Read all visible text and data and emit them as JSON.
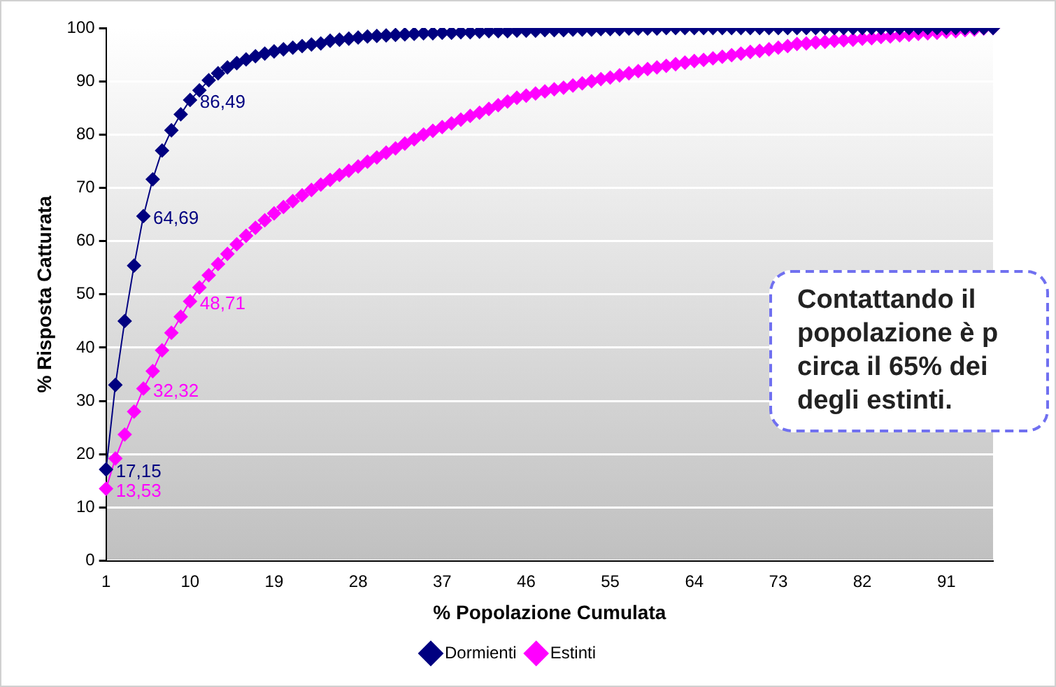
{
  "chart_data": {
    "type": "line",
    "xlabel": "% Popolazione Cumulata",
    "ylabel": "% Risposta Catturata",
    "categories": [
      "1",
      null,
      null,
      null,
      null,
      null,
      null,
      null,
      null,
      "10",
      null,
      null,
      null,
      null,
      null,
      null,
      null,
      null,
      "19",
      null,
      null,
      null,
      null,
      null,
      null,
      null,
      null,
      "28",
      null,
      null,
      null,
      null,
      null,
      null,
      null,
      null,
      "37",
      null,
      null,
      null,
      null,
      null,
      null,
      null,
      null,
      "46",
      null,
      null,
      null,
      null,
      null,
      null,
      null,
      null,
      "55",
      null,
      null,
      null,
      null,
      null,
      null,
      null,
      null,
      "64",
      null,
      null,
      null,
      null,
      null,
      null,
      null,
      null,
      "73",
      null,
      null,
      null,
      null,
      null,
      null,
      null,
      null,
      "82",
      null,
      null,
      null,
      null,
      null,
      null,
      null,
      null,
      "91",
      null,
      null,
      null,
      null,
      null
    ],
    "series": [
      {
        "name": "Dormienti",
        "color": "#000080",
        "values": [
          17.15,
          33,
          45,
          55.4,
          64.69,
          71.6,
          77,
          80.8,
          83.8,
          86.49,
          88.3,
          90.2,
          91.5,
          92.6,
          93.4,
          94.1,
          94.7,
          95.2,
          95.6,
          96,
          96.3,
          96.6,
          96.9,
          97.1,
          97.6,
          97.8,
          98,
          98.2,
          98.4,
          98.5,
          98.6,
          98.7,
          98.8,
          98.9,
          99,
          99,
          99.1,
          99.1,
          99.2,
          99.2,
          99.3,
          99.4,
          99.4,
          99.4,
          99.5,
          99.5,
          99.5,
          99.6,
          99.6,
          99.6,
          99.7,
          99.7,
          99.7,
          99.8,
          99.8,
          99.8,
          99.9,
          99.9,
          99.9,
          99.9,
          100,
          100,
          100,
          100,
          100,
          100,
          100,
          100,
          100,
          100,
          100,
          100,
          100,
          100,
          100,
          100,
          100,
          100,
          100,
          100,
          100,
          100,
          100,
          100,
          100,
          100,
          100,
          100,
          100,
          100,
          100,
          100,
          100,
          100,
          100,
          100
        ],
        "value_labels": [
          "17,15",
          null,
          null,
          null,
          "64,69",
          null,
          null,
          null,
          null,
          "86,49",
          null,
          null,
          null,
          null,
          null,
          null,
          null,
          null,
          null,
          null,
          null,
          null,
          null,
          null,
          null,
          null,
          null,
          null,
          null,
          null,
          null,
          null,
          null,
          null,
          null,
          null,
          null,
          null,
          null,
          null,
          null,
          null,
          null,
          null,
          null,
          null,
          null,
          null,
          null,
          null,
          null,
          null,
          null,
          null,
          null,
          null,
          null,
          null,
          null,
          null,
          null,
          null,
          null,
          null,
          null,
          null,
          null,
          null,
          null,
          null,
          null,
          null,
          null,
          null,
          null,
          null,
          null,
          null,
          null,
          null,
          null,
          null,
          null,
          null,
          null,
          null,
          null,
          null,
          null,
          null,
          null,
          null,
          null,
          null,
          null,
          null
        ]
      },
      {
        "name": "Estinti",
        "color": "#ff00ff",
        "values": [
          13.53,
          19.2,
          23.7,
          28,
          32.32,
          35.6,
          39.5,
          42.8,
          45.8,
          48.71,
          51.3,
          53.6,
          55.7,
          57.6,
          59.4,
          61,
          62.5,
          63.9,
          65.2,
          66.4,
          67.5,
          68.6,
          69.6,
          70.6,
          71.5,
          72.4,
          73.2,
          74,
          74.9,
          75.7,
          76.6,
          77.4,
          78.3,
          79.1,
          80,
          80.7,
          81.4,
          82.1,
          82.8,
          83.5,
          84.1,
          84.8,
          85.5,
          86.2,
          86.9,
          87.3,
          87.7,
          88.1,
          88.5,
          88.8,
          89.2,
          89.6,
          90,
          90.4,
          90.7,
          91.1,
          91.5,
          91.9,
          92.3,
          92.6,
          92.9,
          93.2,
          93.5,
          93.8,
          94,
          94.3,
          94.6,
          94.9,
          95.2,
          95.5,
          95.7,
          96,
          96.3,
          96.6,
          97,
          97.1,
          97.3,
          97.4,
          97.6,
          97.7,
          97.8,
          98,
          98.1,
          98.3,
          98.4,
          98.6,
          98.7,
          98.9,
          99,
          99.1,
          99.3,
          99.4,
          99.6,
          99.7,
          99.9,
          100
        ],
        "value_labels": [
          "13,53",
          null,
          null,
          null,
          "32,32",
          null,
          null,
          null,
          null,
          "48,71",
          null,
          null,
          null,
          null,
          null,
          null,
          null,
          null,
          null,
          null,
          null,
          null,
          null,
          null,
          null,
          null,
          null,
          null,
          null,
          null,
          null,
          null,
          null,
          null,
          null,
          null,
          null,
          null,
          null,
          null,
          null,
          null,
          null,
          null,
          null,
          null,
          null,
          null,
          null,
          null,
          null,
          null,
          null,
          null,
          null,
          null,
          null,
          null,
          null,
          null,
          null,
          null,
          null,
          null,
          null,
          null,
          null,
          null,
          null,
          null,
          null,
          null,
          null,
          null,
          null,
          null,
          null,
          null,
          null,
          null,
          null,
          null,
          null,
          null,
          null,
          null,
          null,
          null,
          null,
          null,
          null,
          null,
          null,
          null,
          null,
          null
        ]
      }
    ],
    "ylim": [
      0,
      100
    ],
    "yticks": [
      0,
      10,
      20,
      30,
      40,
      50,
      60,
      70,
      80,
      90,
      100
    ],
    "grid": "y",
    "legend": "bottom",
    "marker": "diamond",
    "line_style": "solid",
    "annotations": [
      "Contattando il\npopolazione è p\ncirca il 65% dei\ndegli estinti."
    ]
  }
}
